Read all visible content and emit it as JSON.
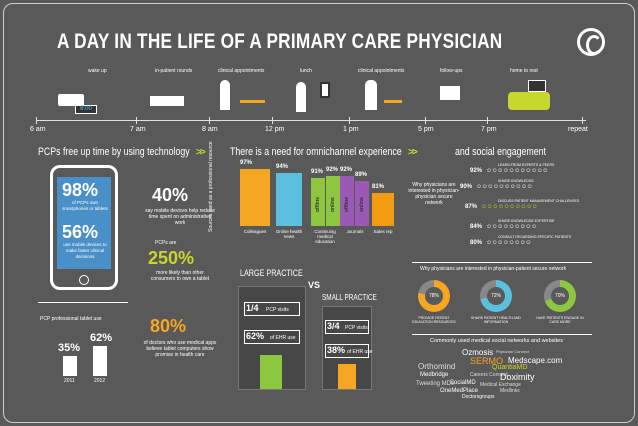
{
  "title": "A DAY IN THE LIFE OF A PRIMARY CARE PHYSICIAN",
  "timeline": {
    "activities": [
      "wake up",
      "in-patient rounds",
      "clinical appointments",
      "lunch",
      "clinical appointments",
      "follow-ups",
      "home to rest"
    ],
    "times": [
      "6 am",
      "7 am",
      "8 am",
      "12 pm",
      "1 pm",
      "5 pm",
      "7 pm",
      "repeat"
    ],
    "clock": "6:00"
  },
  "section1": {
    "heading": "PCPs free up time by using technology",
    "stat1_value": "98%",
    "stat1_text": "of PCPs own smartphones or tablets",
    "stat2_value": "56%",
    "stat2_text": "use mobile devices to make faster clinical decisions",
    "stat3_value": "40%",
    "stat3_text": "say mobile devices help reduce time spent on administrative work",
    "stat4_pre": "PCPs are",
    "stat4_value": "250%",
    "stat4_text": "more likely than other consumers to own a tablet",
    "stat5_value": "80%",
    "stat5_text": "of doctors who use medical apps believe tablet computers show promise in health care",
    "tablet_use_label": "PCP professional tablet use",
    "tablet_2011": "35%",
    "tablet_2012": "62%",
    "year_2011": "2011",
    "year_2012": "2012"
  },
  "section2": {
    "heading": "There is a need for omnichannel experience",
    "y_label": "Sources used as a professional resource",
    "bars": [
      {
        "value": "97%",
        "label": "Colleagues",
        "color": "#f5a623"
      },
      {
        "value": "94%",
        "label": "Online health news",
        "color": "#5bc0de"
      },
      {
        "value": "91%",
        "label": "Continuing medical education",
        "color": "#8dc63f"
      },
      {
        "value": "92%",
        "label": "Continuing medical education",
        "color": "#8dc63f"
      },
      {
        "value": "92%",
        "label": "Journals",
        "color": "#9b59b6"
      },
      {
        "value": "89%",
        "label": "Journals",
        "color": "#9b59b6"
      },
      {
        "value": "81%",
        "label": "Sales rep",
        "color": "#f39c12"
      }
    ],
    "bar_inner_labels": [
      "offline",
      "online",
      "offline",
      "online"
    ],
    "large_practice": "LARGE PRACTICE",
    "vs": "VS",
    "small_practice": "SMALL PRACTICE",
    "large_visits": "1/4",
    "large_visits_text": "PCP visits",
    "large_ehr": "62%",
    "large_ehr_text": "of EHR use",
    "small_visits": "3/4",
    "small_visits_text": "PCP visits",
    "small_ehr": "38%",
    "small_ehr_text": "of EHR use"
  },
  "section3": {
    "heading": "and social engagement",
    "question": "Why physicians are interested in physician-physician secure network",
    "rows": [
      {
        "value": "92%",
        "caption": "LEARN FROM EXPERTS & PEERS"
      },
      {
        "value": "90%",
        "caption": "SHARE KNOWLEDGE"
      },
      {
        "value": "87%",
        "caption": "DISCUSS PATIENT MANAGEMENT CHALLENGES"
      },
      {
        "value": "84%",
        "caption": "SHARE KNOWLEDGE EXPERTISE"
      },
      {
        "value": "80%",
        "caption": "CONSULT REGARDING SPECIFIC PATIENTS"
      }
    ],
    "donut_heading": "Why physicians are interested in physician-patient secure network",
    "donuts": [
      {
        "value": "78%",
        "caption": "PROVIDE PATIENT EDUCATION RESOURCES",
        "color": "#f5a623"
      },
      {
        "value": "72%",
        "caption": "SHARE PATIENT HEALTH AND INFORMATION",
        "color": "#5bc0de"
      },
      {
        "value": "70%",
        "caption": "HAVE PATIENTS ENGAGE IN CARE MORE",
        "color": "#8dc63f"
      }
    ],
    "cloud_heading": "Commonly used medical social networks and websites",
    "cloud": [
      "Ozmosis",
      "Physician Connect",
      "SERMO",
      "Medscape.com",
      "Orthomind",
      "QuantiaMD",
      "Medbridge",
      "Careers Connect",
      "Doximity",
      "SocialMD",
      "Tweeting MDs",
      "Medical Exchange",
      "OneMedPlace",
      "Medlinks",
      "Doctorsgroups"
    ]
  },
  "colors": {
    "background": "#595959",
    "accent": "#c6d82e",
    "blue": "#5bc0de",
    "orange": "#f5a623",
    "green": "#8dc63f",
    "purple": "#9b59b6"
  }
}
